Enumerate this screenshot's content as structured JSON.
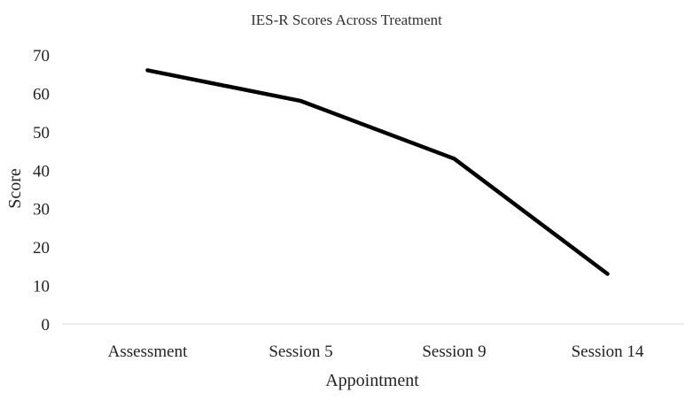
{
  "chart_data": {
    "type": "line",
    "title": "IES-R Scores Across Treatment",
    "xlabel": "Appointment",
    "ylabel": "Score",
    "categories": [
      "Assessment",
      "Session 5",
      "Session 9",
      "Session 14"
    ],
    "series": [
      {
        "values": [
          66,
          58,
          43,
          13
        ],
        "color": "#000000"
      }
    ],
    "ylim": [
      0,
      70
    ],
    "yticks": [
      0,
      10,
      20,
      30,
      40,
      50,
      60,
      70
    ],
    "grid": false,
    "axis_color": "#d9d9d9"
  }
}
